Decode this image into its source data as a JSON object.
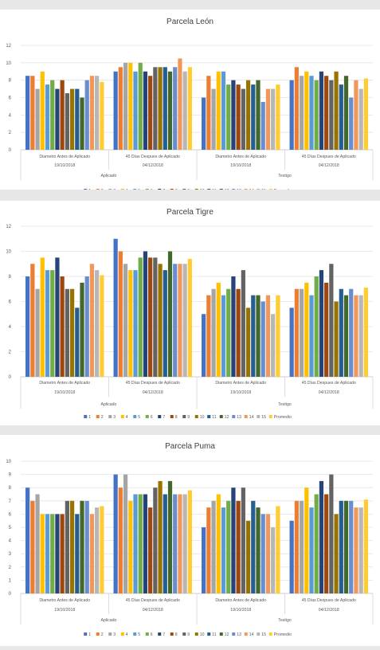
{
  "palette": [
    "#4472c4",
    "#ed7d31",
    "#a5a5a5",
    "#ffc000",
    "#5b9bd5",
    "#70ad47",
    "#264478",
    "#9e480e",
    "#636363",
    "#997300",
    "#255e91",
    "#43682b",
    "#698ed0",
    "#f1975a",
    "#b7b7b7",
    "#ffcd33"
  ],
  "chart_data": [
    {
      "type": "bar",
      "title": "Parcela León",
      "ylim": [
        0,
        12
      ],
      "yticks": [
        0,
        2,
        4,
        6,
        8,
        10,
        12
      ],
      "grid": true,
      "legend": "bottom",
      "categories": [
        {
          "label": "Diametro Antes de Aplicado",
          "date": "19/10/2018",
          "group": "Aplicado"
        },
        {
          "label": "45 Días Despues de Aplicado",
          "date": "04/12/2018",
          "group": "Aplicado"
        },
        {
          "label": "Diametro Antes de Aplicado",
          "date": "19/10/2018",
          "group": "Testigo"
        },
        {
          "label": "45 Días Despues de Aplicado",
          "date": "04/12/2018",
          "group": "Testigo"
        }
      ],
      "groups": [
        "Aplicado",
        "Testigo"
      ],
      "series": [
        {
          "name": "1",
          "values": [
            8.5,
            9.0,
            6.0,
            8.0
          ]
        },
        {
          "name": "2",
          "values": [
            8.5,
            9.5,
            8.5,
            9.5
          ]
        },
        {
          "name": "3",
          "values": [
            7.0,
            10.0,
            7.0,
            8.5
          ]
        },
        {
          "name": "4",
          "values": [
            9.0,
            10.0,
            9.0,
            9.0
          ]
        },
        {
          "name": "5",
          "values": [
            7.5,
            9.0,
            9.0,
            8.5
          ]
        },
        {
          "name": "6",
          "values": [
            8.0,
            10.0,
            7.5,
            8.0
          ]
        },
        {
          "name": "7",
          "values": [
            7.0,
            9.0,
            8.0,
            9.0
          ]
        },
        {
          "name": "8",
          "values": [
            8.0,
            8.5,
            7.5,
            8.5
          ]
        },
        {
          "name": "9",
          "values": [
            6.5,
            9.5,
            7.0,
            8.0
          ]
        },
        {
          "name": "10",
          "values": [
            7.0,
            9.5,
            8.0,
            9.0
          ]
        },
        {
          "name": "11",
          "values": [
            7.0,
            9.5,
            7.5,
            7.5
          ]
        },
        {
          "name": "12",
          "values": [
            6.0,
            9.0,
            8.0,
            8.5
          ]
        },
        {
          "name": "13",
          "values": [
            8.0,
            9.5,
            5.5,
            6.0
          ]
        },
        {
          "name": "14",
          "values": [
            8.5,
            10.5,
            7.0,
            8.0
          ]
        },
        {
          "name": "15",
          "values": [
            8.5,
            9.0,
            7.0,
            7.0
          ]
        },
        {
          "name": "Promedio",
          "values": [
            7.8,
            9.5,
            7.5,
            8.2
          ]
        }
      ]
    },
    {
      "type": "bar",
      "title": "Parcela Tigre",
      "ylim": [
        0,
        12
      ],
      "yticks": [
        0,
        2,
        4,
        6,
        8,
        10,
        12
      ],
      "grid": true,
      "legend": "bottom",
      "categories": [
        {
          "label": "Diametro Antes de Aplicado",
          "date": "19/10/2018",
          "group": "Aplicado"
        },
        {
          "label": "45 Días Despues de Aplicado",
          "date": "04/12/2018",
          "group": "Aplicado"
        },
        {
          "label": "Diametro Antes de Aplicado",
          "date": "19/10/2018",
          "group": "Testigo"
        },
        {
          "label": "45 Días Despues de Aplicado",
          "date": "04/12/2018",
          "group": "Testigo"
        }
      ],
      "groups": [
        "Aplicado",
        "Testigo"
      ],
      "series": [
        {
          "name": "1",
          "values": [
            8.0,
            11.0,
            5.0,
            5.5
          ]
        },
        {
          "name": "2",
          "values": [
            9.0,
            10.0,
            6.5,
            7.0
          ]
        },
        {
          "name": "3",
          "values": [
            7.0,
            9.0,
            7.0,
            7.0
          ]
        },
        {
          "name": "4",
          "values": [
            9.5,
            8.5,
            7.5,
            7.5
          ]
        },
        {
          "name": "5",
          "values": [
            8.5,
            8.5,
            6.5,
            6.5
          ]
        },
        {
          "name": "6",
          "values": [
            8.5,
            9.5,
            7.0,
            8.0
          ]
        },
        {
          "name": "7",
          "values": [
            9.5,
            10.0,
            8.0,
            8.5
          ]
        },
        {
          "name": "8",
          "values": [
            8.0,
            9.5,
            7.0,
            7.5
          ]
        },
        {
          "name": "9",
          "values": [
            7.0,
            9.5,
            8.5,
            9.0
          ]
        },
        {
          "name": "10",
          "values": [
            7.0,
            9.0,
            5.5,
            6.0
          ]
        },
        {
          "name": "11",
          "values": [
            5.5,
            8.5,
            6.5,
            7.0
          ]
        },
        {
          "name": "12",
          "values": [
            7.5,
            10.0,
            6.5,
            6.5
          ]
        },
        {
          "name": "13",
          "values": [
            8.0,
            9.0,
            6.0,
            7.0
          ]
        },
        {
          "name": "14",
          "values": [
            9.0,
            9.0,
            6.5,
            6.5
          ]
        },
        {
          "name": "15",
          "values": [
            8.5,
            9.0,
            5.0,
            6.5
          ]
        },
        {
          "name": "Promedio",
          "values": [
            8.1,
            9.4,
            6.5,
            7.1
          ]
        }
      ]
    },
    {
      "type": "bar",
      "title": "Parcela Puma",
      "ylim": [
        0,
        10
      ],
      "yticks": [
        0,
        1,
        2,
        3,
        4,
        5,
        6,
        7,
        8,
        9,
        10
      ],
      "grid": true,
      "legend": "bottom",
      "categories": [
        {
          "label": "Diametro Antes de Aplicado",
          "date": "19/10/2018",
          "group": "Aplicado"
        },
        {
          "label": "45 Días Despues de Aplicado",
          "date": "04/12/2018",
          "group": "Aplicado"
        },
        {
          "label": "Diametro Antes de Aplicado",
          "date": "19/10/2018",
          "group": "Testigo"
        },
        {
          "label": "45 Días Despues de Aplicado",
          "date": "04/12/2018",
          "group": "Testigo"
        }
      ],
      "groups": [
        "Aplicado",
        "Testigo"
      ],
      "series": [
        {
          "name": "1",
          "values": [
            8.0,
            9.0,
            5.0,
            5.5
          ]
        },
        {
          "name": "2",
          "values": [
            7.0,
            8.0,
            6.5,
            7.0
          ]
        },
        {
          "name": "3",
          "values": [
            7.5,
            9.0,
            7.0,
            7.0
          ]
        },
        {
          "name": "4",
          "values": [
            6.0,
            7.0,
            7.5,
            8.0
          ]
        },
        {
          "name": "5",
          "values": [
            6.0,
            7.5,
            6.5,
            6.5
          ]
        },
        {
          "name": "6",
          "values": [
            6.0,
            7.5,
            7.0,
            7.5
          ]
        },
        {
          "name": "7",
          "values": [
            6.0,
            7.5,
            8.0,
            8.5
          ]
        },
        {
          "name": "8",
          "values": [
            6.0,
            6.5,
            7.0,
            7.5
          ]
        },
        {
          "name": "9",
          "values": [
            7.0,
            8.0,
            8.0,
            9.0
          ]
        },
        {
          "name": "10",
          "values": [
            7.0,
            8.5,
            5.5,
            6.0
          ]
        },
        {
          "name": "11",
          "values": [
            6.0,
            7.5,
            7.0,
            7.0
          ]
        },
        {
          "name": "12",
          "values": [
            7.0,
            8.5,
            6.5,
            7.0
          ]
        },
        {
          "name": "13",
          "values": [
            7.0,
            7.5,
            6.0,
            7.0
          ]
        },
        {
          "name": "14",
          "values": [
            6.0,
            7.5,
            6.0,
            6.5
          ]
        },
        {
          "name": "15",
          "values": [
            6.5,
            7.5,
            5.0,
            6.5
          ]
        },
        {
          "name": "Promedio",
          "values": [
            6.6,
            7.8,
            6.6,
            7.1
          ]
        }
      ]
    }
  ]
}
